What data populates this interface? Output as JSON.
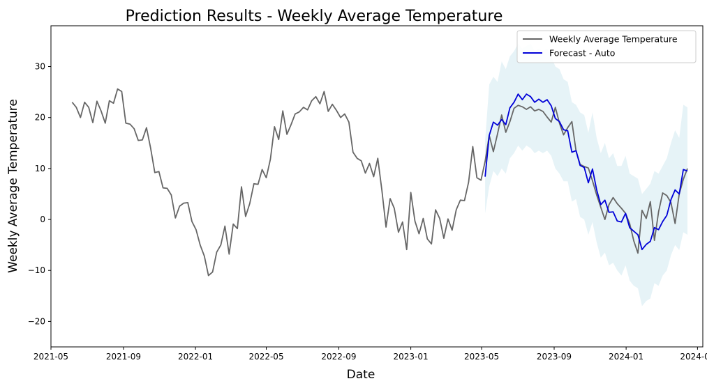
{
  "chart_data": {
    "type": "line",
    "title": "Prediction Results - Weekly Average Temperature",
    "xlabel": "Date",
    "ylabel": "Weekly Average Temperature",
    "xlim": [
      "2021-05-01",
      "2024-05-10"
    ],
    "ylim": [
      -25,
      38
    ],
    "x_ticks": [
      "2021-05-01",
      "2021-09-01",
      "2022-01-01",
      "2022-05-01",
      "2022-09-01",
      "2023-01-01",
      "2023-05-01",
      "2023-09-01",
      "2024-01-01",
      "2024-05-01"
    ],
    "x_tick_labels": [
      "2021-05",
      "2021-09",
      "2022-01",
      "2022-05",
      "2022-09",
      "2023-01",
      "2023-05",
      "2023-09",
      "2024-01",
      "2024-05"
    ],
    "y_ticks": [
      -20,
      -10,
      0,
      10,
      20,
      30
    ],
    "y_tick_labels": [
      "−20",
      "−10",
      "0",
      "10",
      "20",
      "30"
    ],
    "grid": false,
    "legend_position": "top-right",
    "series": [
      {
        "name": "Weekly Average Temperature",
        "color": "#666666",
        "x": [
          "2021-06-06",
          "2021-06-13",
          "2021-06-20",
          "2021-06-27",
          "2021-07-04",
          "2021-07-11",
          "2021-07-18",
          "2021-07-25",
          "2021-08-01",
          "2021-08-08",
          "2021-08-15",
          "2021-08-22",
          "2021-08-29",
          "2021-09-05",
          "2021-09-12",
          "2021-09-19",
          "2021-09-26",
          "2021-10-03",
          "2021-10-10",
          "2021-10-17",
          "2021-10-24",
          "2021-10-31",
          "2021-11-07",
          "2021-11-14",
          "2021-11-21",
          "2021-11-28",
          "2021-12-05",
          "2021-12-12",
          "2021-12-19",
          "2021-12-26",
          "2022-01-02",
          "2022-01-09",
          "2022-01-16",
          "2022-01-23",
          "2022-01-30",
          "2022-02-06",
          "2022-02-13",
          "2022-02-20",
          "2022-02-27",
          "2022-03-06",
          "2022-03-13",
          "2022-03-20",
          "2022-03-27",
          "2022-04-03",
          "2022-04-10",
          "2022-04-17",
          "2022-04-24",
          "2022-05-01",
          "2022-05-08",
          "2022-05-15",
          "2022-05-22",
          "2022-05-29",
          "2022-06-05",
          "2022-06-12",
          "2022-06-19",
          "2022-06-26",
          "2022-07-03",
          "2022-07-10",
          "2022-07-17",
          "2022-07-24",
          "2022-07-31",
          "2022-08-07",
          "2022-08-14",
          "2022-08-21",
          "2022-08-28",
          "2022-09-04",
          "2022-09-11",
          "2022-09-18",
          "2022-09-25",
          "2022-10-02",
          "2022-10-09",
          "2022-10-16",
          "2022-10-23",
          "2022-10-30",
          "2022-11-06",
          "2022-11-13",
          "2022-11-20",
          "2022-11-27",
          "2022-12-04",
          "2022-12-11",
          "2022-12-18",
          "2022-12-25",
          "2023-01-01",
          "2023-01-08",
          "2023-01-15",
          "2023-01-22",
          "2023-01-29",
          "2023-02-05",
          "2023-02-12",
          "2023-02-19",
          "2023-02-26",
          "2023-03-05",
          "2023-03-12",
          "2023-03-19",
          "2023-03-26",
          "2023-04-02",
          "2023-04-09",
          "2023-04-16",
          "2023-04-23",
          "2023-04-30",
          "2023-05-07",
          "2023-05-14",
          "2023-05-21",
          "2023-05-28",
          "2023-06-04",
          "2023-06-11",
          "2023-06-18",
          "2023-06-25",
          "2023-07-02",
          "2023-07-09",
          "2023-07-16",
          "2023-07-23",
          "2023-07-30",
          "2023-08-06",
          "2023-08-13",
          "2023-08-20",
          "2023-08-27",
          "2023-09-03",
          "2023-09-10",
          "2023-09-17",
          "2023-09-24",
          "2023-10-01",
          "2023-10-08",
          "2023-10-15",
          "2023-10-22",
          "2023-10-29",
          "2023-11-05",
          "2023-11-12",
          "2023-11-19",
          "2023-11-26",
          "2023-12-03",
          "2023-12-10",
          "2023-12-17",
          "2023-12-24",
          "2023-12-31",
          "2024-01-07",
          "2024-01-14",
          "2024-01-21",
          "2024-01-28",
          "2024-02-04",
          "2024-02-11",
          "2024-02-18",
          "2024-02-25",
          "2024-03-03",
          "2024-03-10",
          "2024-03-17",
          "2024-03-24",
          "2024-03-31",
          "2024-04-07",
          "2024-04-14"
        ],
        "values": [
          23.0,
          22.0,
          20.0,
          23.0,
          22.0,
          19.0,
          23.2,
          21.3,
          18.9,
          23.3,
          22.8,
          25.6,
          25.1,
          18.9,
          18.7,
          17.8,
          15.5,
          15.6,
          18.0,
          14.0,
          9.2,
          9.4,
          6.2,
          6.1,
          4.8,
          0.3,
          2.6,
          3.2,
          3.3,
          -0.4,
          -2.0,
          -5.0,
          -7.2,
          -11.0,
          -10.3,
          -6.4,
          -5.0,
          -1.3,
          -6.8,
          -0.9,
          -1.8,
          6.4,
          0.6,
          3.1,
          7.0,
          6.9,
          9.8,
          8.2,
          11.8,
          18.2,
          15.7,
          21.3,
          16.7,
          18.6,
          20.7,
          21.1,
          22.0,
          21.5,
          23.3,
          24.1,
          22.7,
          25.1,
          21.2,
          22.6,
          21.4,
          20.0,
          20.7,
          19.1,
          13.2,
          12.0,
          11.5,
          9.1,
          11.0,
          8.4,
          12.0,
          5.7,
          -1.5,
          4.1,
          2.2,
          -2.5,
          -0.5,
          -5.9,
          5.3,
          -0.3,
          -2.8,
          0.2,
          -3.8,
          -4.8,
          1.9,
          0.2,
          -3.7,
          0.1,
          -2.1,
          1.9,
          3.8,
          3.7,
          7.3,
          14.3,
          8.2,
          7.7,
          11.4,
          16.5,
          13.3,
          16.8,
          20.5,
          17.1,
          19.2,
          21.8,
          22.4,
          22.1,
          21.6,
          22.1,
          21.3,
          21.6,
          21.2,
          20.1,
          19.1,
          22.0,
          18.9,
          16.6,
          18.0,
          19.2,
          13.5,
          10.8,
          10.4,
          10.1,
          7.6,
          4.8,
          2.4,
          0.0,
          2.9,
          4.3,
          3.1,
          2.2,
          1.2,
          -0.8,
          -4.2,
          -6.6,
          1.8,
          0.2,
          3.5,
          -4.1,
          1.5,
          5.2,
          4.7,
          3.3,
          -0.8,
          5.0,
          7.9,
          10.0
        ]
      },
      {
        "name": "Forecast - Auto",
        "color": "#0000d8",
        "x": [
          "2023-05-07",
          "2023-05-14",
          "2023-05-21",
          "2023-05-28",
          "2023-06-04",
          "2023-06-11",
          "2023-06-18",
          "2023-06-25",
          "2023-07-02",
          "2023-07-09",
          "2023-07-16",
          "2023-07-23",
          "2023-07-30",
          "2023-08-06",
          "2023-08-13",
          "2023-08-20",
          "2023-08-27",
          "2023-09-03",
          "2023-09-10",
          "2023-09-17",
          "2023-09-24",
          "2023-10-01",
          "2023-10-08",
          "2023-10-15",
          "2023-10-22",
          "2023-10-29",
          "2023-11-05",
          "2023-11-12",
          "2023-11-19",
          "2023-11-26",
          "2023-12-03",
          "2023-12-10",
          "2023-12-17",
          "2023-12-24",
          "2023-12-31",
          "2024-01-07",
          "2024-01-14",
          "2024-01-21",
          "2024-01-28",
          "2024-02-04",
          "2024-02-11",
          "2024-02-18",
          "2024-02-25",
          "2024-03-03",
          "2024-03-10",
          "2024-03-17",
          "2024-03-24",
          "2024-03-31",
          "2024-04-07",
          "2024-04-14"
        ],
        "values": [
          8.4,
          16.5,
          19.1,
          18.5,
          19.6,
          18.6,
          21.9,
          23.0,
          24.6,
          23.5,
          24.6,
          24.1,
          23.0,
          23.6,
          23.0,
          23.5,
          22.3,
          19.8,
          19.2,
          17.6,
          17.4,
          13.2,
          13.5,
          10.6,
          10.2,
          7.2,
          9.9,
          5.8,
          2.9,
          3.8,
          1.4,
          1.5,
          -0.3,
          -0.5,
          1.2,
          -1.6,
          -2.3,
          -3.0,
          -5.9,
          -4.9,
          -4.3,
          -1.6,
          -2.0,
          -0.4,
          0.8,
          3.9,
          5.8,
          5.0,
          9.8,
          9.5
        ]
      }
    ],
    "confidence_band": {
      "color": "#add8e6",
      "opacity": 0.3,
      "x": [
        "2023-05-07",
        "2023-05-14",
        "2023-05-21",
        "2023-05-28",
        "2023-06-04",
        "2023-06-11",
        "2023-06-18",
        "2023-06-25",
        "2023-07-02",
        "2023-07-09",
        "2023-07-16",
        "2023-07-23",
        "2023-07-30",
        "2023-08-06",
        "2023-08-13",
        "2023-08-20",
        "2023-08-27",
        "2023-09-03",
        "2023-09-10",
        "2023-09-17",
        "2023-09-24",
        "2023-10-01",
        "2023-10-08",
        "2023-10-15",
        "2023-10-22",
        "2023-10-29",
        "2023-11-05",
        "2023-11-12",
        "2023-11-19",
        "2023-11-26",
        "2023-12-03",
        "2023-12-10",
        "2023-12-17",
        "2023-12-24",
        "2023-12-31",
        "2024-01-07",
        "2024-01-14",
        "2024-01-21",
        "2024-01-28",
        "2024-02-04",
        "2024-02-11",
        "2024-02-18",
        "2024-02-25",
        "2024-03-03",
        "2024-03-10",
        "2024-03-17",
        "2024-03-24",
        "2024-03-31",
        "2024-04-07",
        "2024-04-14"
      ],
      "upper": [
        15.5,
        26.5,
        28.0,
        27.0,
        31.0,
        29.5,
        32.0,
        33.0,
        34.5,
        33.5,
        34.0,
        34.5,
        33.0,
        33.5,
        33.0,
        33.5,
        32.0,
        30.0,
        29.5,
        27.5,
        27.0,
        23.0,
        22.5,
        21.0,
        20.5,
        17.0,
        21.0,
        16.0,
        13.0,
        15.0,
        12.0,
        13.0,
        10.5,
        10.5,
        12.5,
        9.0,
        8.5,
        8.0,
        5.0,
        6.0,
        7.0,
        9.5,
        9.0,
        10.5,
        12.0,
        15.0,
        17.5,
        16.0,
        22.5,
        22.0
      ],
      "lower": [
        1.2,
        6.5,
        9.5,
        8.5,
        10.0,
        9.0,
        12.0,
        13.0,
        14.5,
        13.5,
        14.5,
        14.0,
        13.0,
        13.5,
        13.0,
        13.5,
        12.5,
        10.0,
        9.0,
        7.5,
        7.5,
        3.5,
        4.0,
        0.5,
        0.0,
        -3.0,
        -0.5,
        -4.5,
        -7.5,
        -6.5,
        -9.0,
        -8.5,
        -10.0,
        -11.0,
        -9.0,
        -12.0,
        -13.0,
        -13.5,
        -17.0,
        -16.0,
        -15.5,
        -12.5,
        -13.0,
        -11.0,
        -10.0,
        -7.0,
        -5.0,
        -6.0,
        -2.5,
        -3.0
      ]
    }
  }
}
